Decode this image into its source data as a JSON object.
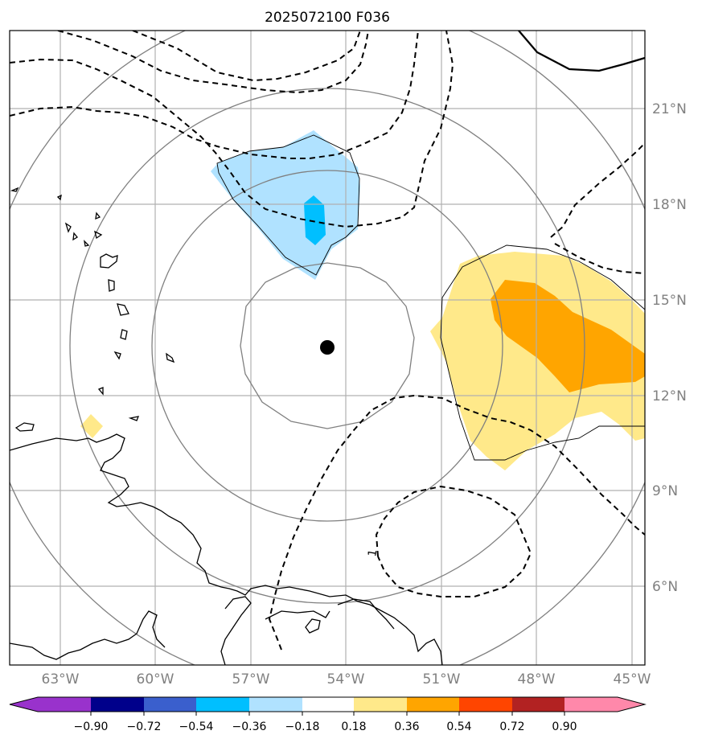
{
  "title": "2025072100 F036",
  "lon_labels": [
    "63°W",
    "60°W",
    "57°W",
    "54°W",
    "51°W",
    "48°W",
    "45°W"
  ],
  "lat_labels": [
    "21°N",
    "18°N",
    "15°N",
    "12°N",
    "9°N",
    "6°N"
  ],
  "contour_label": "1",
  "colorbar": {
    "ticks": [
      "−0.90",
      "−0.72",
      "−0.54",
      "−0.36",
      "−0.18",
      "0.18",
      "0.36",
      "0.54",
      "0.72",
      "0.90"
    ],
    "colors": [
      "#9932cc",
      "#00008b",
      "#3a5fcd",
      "#00bfff",
      "#b0e2ff",
      "#ffffff",
      "#ffe98a",
      "#ffa500",
      "#ff4500",
      "#b22222",
      "#ff88aa"
    ]
  },
  "colors": {
    "shade_neg_light": "#b0e2ff",
    "shade_neg_mid": "#00bfff",
    "shade_pos_light": "#ffe98a",
    "shade_pos_mid": "#ffa500",
    "grid": "#b0b0b0",
    "range_ring": "#808080"
  }
}
